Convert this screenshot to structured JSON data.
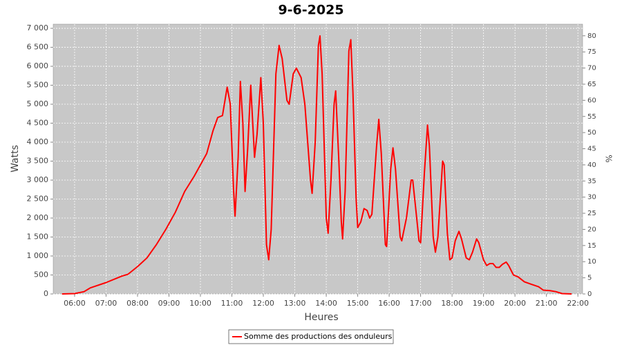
{
  "chart_data": {
    "type": "line",
    "title": "9-6-2025",
    "xlabel": "Heures",
    "ylabel": "Watts",
    "y2label": "%",
    "x": [
      5.6,
      6.0,
      6.3,
      6.5,
      7.0,
      7.5,
      7.7,
      8.0,
      8.3,
      8.6,
      8.9,
      9.2,
      9.5,
      9.8,
      10.0,
      10.2,
      10.4,
      10.55,
      10.7,
      10.85,
      10.95,
      11.05,
      11.1,
      11.2,
      11.27,
      11.35,
      11.42,
      11.5,
      11.6,
      11.72,
      11.8,
      11.92,
      12.0,
      12.1,
      12.17,
      12.25,
      12.4,
      12.5,
      12.6,
      12.75,
      12.82,
      12.95,
      13.05,
      13.2,
      13.32,
      13.5,
      13.55,
      13.65,
      13.75,
      13.8,
      13.87,
      14.0,
      14.06,
      14.15,
      14.25,
      14.3,
      14.4,
      14.48,
      14.52,
      14.6,
      14.72,
      14.78,
      14.85,
      14.95,
      15.0,
      15.1,
      15.2,
      15.3,
      15.38,
      15.45,
      15.6,
      15.67,
      15.75,
      15.88,
      15.92,
      16.05,
      16.12,
      16.2,
      16.35,
      16.4,
      16.55,
      16.7,
      16.75,
      16.85,
      16.95,
      17.0,
      17.12,
      17.22,
      17.28,
      17.4,
      17.47,
      17.55,
      17.7,
      17.75,
      17.85,
      17.93,
      18.0,
      18.1,
      18.22,
      18.3,
      18.45,
      18.55,
      18.65,
      18.78,
      18.85,
      19.0,
      19.1,
      19.2,
      19.3,
      19.4,
      19.5,
      19.6,
      19.72,
      19.8,
      19.95,
      20.1,
      20.3,
      20.5,
      20.75,
      20.9,
      21.1,
      21.3,
      21.5,
      21.8
    ],
    "series": [
      {
        "name": "Somme des productions des onduleurs",
        "color": "#ff0000",
        "values": [
          0,
          10,
          60,
          160,
          300,
          470,
          520,
          720,
          950,
          1300,
          1700,
          2150,
          2700,
          3100,
          3400,
          3700,
          4300,
          4650,
          4700,
          5450,
          5000,
          2800,
          2050,
          3600,
          5600,
          4500,
          2700,
          3800,
          5500,
          3600,
          4200,
          5700,
          4500,
          1300,
          900,
          1700,
          5800,
          6550,
          6200,
          5100,
          5000,
          5800,
          5950,
          5700,
          5000,
          3000,
          2650,
          4000,
          6550,
          6800,
          5800,
          2000,
          1600,
          3000,
          5000,
          5350,
          3500,
          1900,
          1450,
          2700,
          6400,
          6700,
          5300,
          2500,
          1750,
          1900,
          2250,
          2200,
          2000,
          2100,
          3900,
          4600,
          3700,
          1300,
          1250,
          3300,
          3850,
          3300,
          1500,
          1400,
          2000,
          3000,
          3000,
          2200,
          1400,
          1350,
          3200,
          4450,
          3900,
          1500,
          1100,
          1500,
          3500,
          3400,
          1600,
          900,
          950,
          1400,
          1650,
          1450,
          950,
          900,
          1100,
          1450,
          1350,
          900,
          750,
          800,
          800,
          700,
          700,
          780,
          840,
          750,
          500,
          450,
          320,
          260,
          190,
          100,
          90,
          60,
          10,
          0
        ]
      }
    ],
    "xlim": [
      5.32,
      22.15
    ],
    "xticks": [
      {
        "value": 6,
        "label": "06:00"
      },
      {
        "value": 7,
        "label": "07:00"
      },
      {
        "value": 8,
        "label": "08:00"
      },
      {
        "value": 9,
        "label": "09:00"
      },
      {
        "value": 10,
        "label": "10:00"
      },
      {
        "value": 11,
        "label": "11:00"
      },
      {
        "value": 12,
        "label": "12:00"
      },
      {
        "value": 13,
        "label": "13:00"
      },
      {
        "value": 14,
        "label": "14:00"
      },
      {
        "value": 15,
        "label": "15:00"
      },
      {
        "value": 16,
        "label": "16:00"
      },
      {
        "value": 17,
        "label": "17:00"
      },
      {
        "value": 18,
        "label": "18:00"
      },
      {
        "value": 19,
        "label": "19:00"
      },
      {
        "value": 20,
        "label": "20:00"
      },
      {
        "value": 21,
        "label": "21:00"
      },
      {
        "value": 22,
        "label": "22:00"
      }
    ],
    "ylim": [
      0,
      7110
    ],
    "yticks": [
      0,
      500,
      {
        "value": 1000,
        "label": "1 000"
      },
      {
        "value": 1500,
        "label": "1 500"
      },
      {
        "value": 2000,
        "label": "2 000"
      },
      {
        "value": 2500,
        "label": "2 500"
      },
      {
        "value": 3000,
        "label": "3 000"
      },
      {
        "value": 3500,
        "label": "3 500"
      },
      {
        "value": 4000,
        "label": "4 000"
      },
      {
        "value": 4500,
        "label": "4 500"
      },
      {
        "value": 5000,
        "label": "5 000"
      },
      {
        "value": 5500,
        "label": "5 500"
      },
      {
        "value": 6000,
        "label": "6 000"
      },
      {
        "value": 6500,
        "label": "6 500"
      },
      {
        "value": 7000,
        "label": "7 000"
      }
    ],
    "y2lim": [
      0,
      83.6
    ],
    "y2ticks": [
      0,
      5,
      10,
      15,
      20,
      25,
      30,
      35,
      40,
      45,
      50,
      55,
      60,
      65,
      70,
      75,
      80
    ],
    "grid": true
  }
}
